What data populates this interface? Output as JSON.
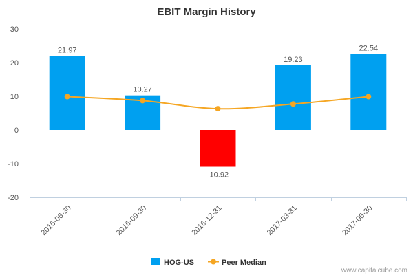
{
  "chart_data": {
    "type": "bar",
    "title": "EBIT Margin History",
    "xlabel": "",
    "ylabel": "",
    "categories": [
      "2016-06-30",
      "2016-09-30",
      "2016-12-31",
      "2017-03-31",
      "2017-06-30"
    ],
    "ylim": [
      -20,
      30
    ],
    "yticks": [
      "-20",
      "-10",
      "0",
      "10",
      "20",
      "30"
    ],
    "grid": false,
    "legend_position": "bottom-center",
    "series": [
      {
        "name": "HOG-US",
        "type": "bar",
        "values": [
          21.97,
          10.27,
          -10.92,
          19.23,
          22.54
        ],
        "labels": [
          "21.97",
          "10.27",
          "-10.92",
          "19.23",
          "22.54"
        ],
        "color": "#00a0f0",
        "negative_color": "#ff0000"
      },
      {
        "name": "Peer Median",
        "type": "line",
        "values": [
          9.9,
          8.7,
          6.3,
          7.7,
          9.9
        ],
        "color": "#f5a623"
      }
    ],
    "credit": "www.capitalcube.com"
  }
}
